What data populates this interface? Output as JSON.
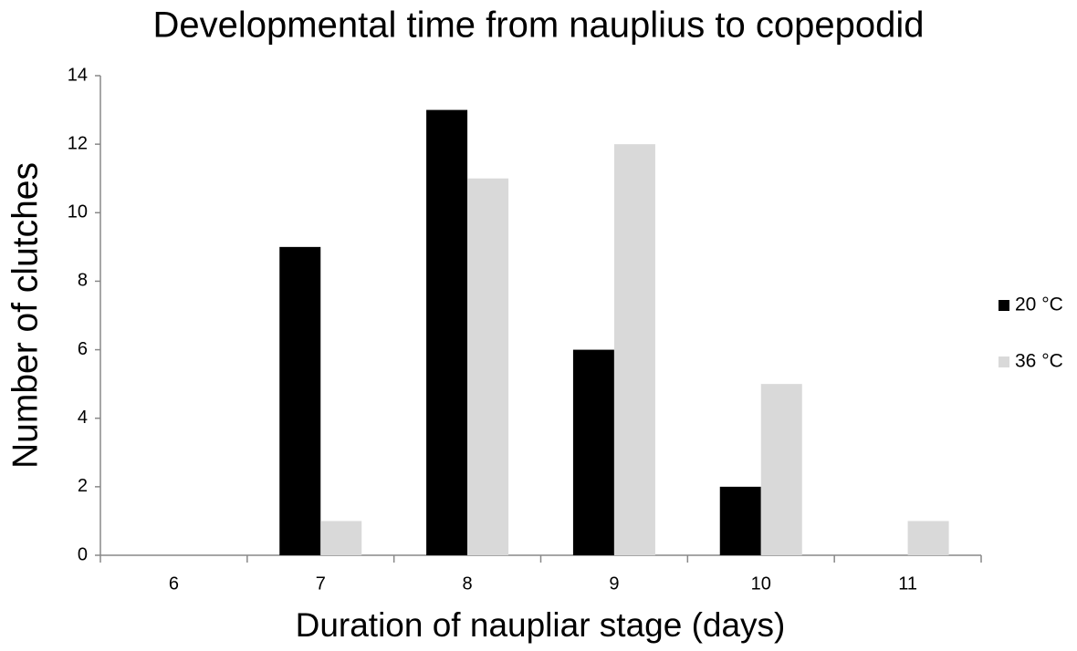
{
  "chart_data": {
    "type": "bar",
    "title": "Developmental time from nauplius to copepodid",
    "x_label": "Duration of naupliar stage (days)",
    "y_label": "Number of  clutches",
    "categories": [
      "6",
      "7",
      "8",
      "9",
      "10",
      "11"
    ],
    "series": [
      {
        "name": "20 °C",
        "color": "#000000",
        "values": [
          0,
          9,
          13,
          6,
          2,
          0
        ]
      },
      {
        "name": "36 °C",
        "color": "#d9d9d9",
        "values": [
          0,
          1,
          11,
          12,
          5,
          1
        ]
      }
    ],
    "ylim": [
      0,
      14
    ],
    "yticks": [
      0,
      2,
      4,
      6,
      8,
      10,
      12,
      14
    ],
    "grid": false,
    "legend": "right"
  }
}
